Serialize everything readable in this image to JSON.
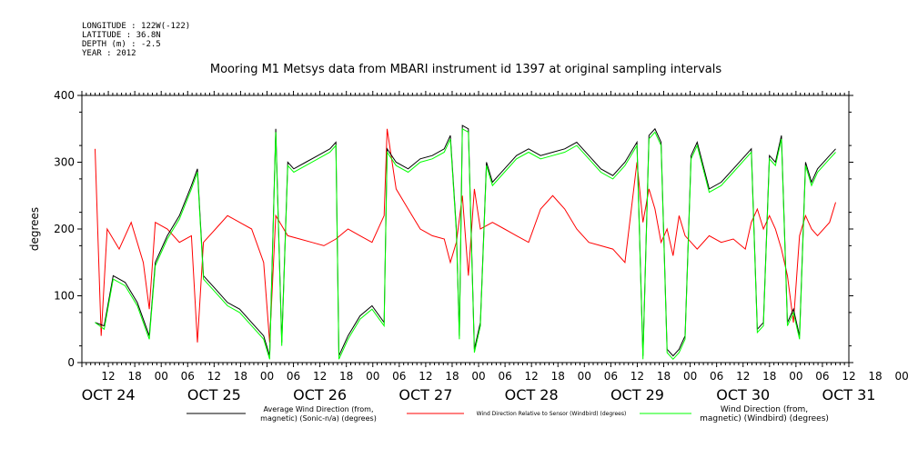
{
  "header": {
    "lines": [
      "LONGITUDE : 122W(-122)",
      "LATITUDE : 36.8N",
      "DEPTH (m) : -2.5",
      "YEAR : 2012"
    ],
    "title": "Mooring M1 Metsys data from MBARI instrument id 1397 at original sampling intervals"
  },
  "chart_data": {
    "type": "line",
    "title": "Mooring M1 Metsys data from MBARI instrument id 1397 at original sampling intervals",
    "xlabel": "",
    "ylabel": "degrees",
    "xlim": [
      "2012-10-24 06:00",
      "2012-10-31 12:00"
    ],
    "ylim": [
      0,
      400
    ],
    "y_ticks": [
      0,
      100,
      200,
      300,
      400
    ],
    "x_hour_labels": [
      "12",
      "18",
      "00",
      "06",
      "12",
      "18",
      "00",
      "06",
      "12",
      "18",
      "00",
      "06",
      "12",
      "18",
      "00",
      "06",
      "12",
      "18",
      "00",
      "06",
      "12",
      "18",
      "00",
      "06",
      "12",
      "18",
      "00",
      "06",
      "12",
      "18",
      "00",
      "06"
    ],
    "x_day_labels": [
      "OCT 24",
      "OCT 25",
      "OCT 26",
      "OCT 27",
      "OCT 28",
      "OCT 29",
      "OCT 30",
      "OCT 31"
    ],
    "grid": false,
    "legend": "bottom",
    "series": [
      {
        "name": "Average Wind Direction (from, magnetic) (Sonic-n/a) (degrees)",
        "name_lines": [
          "Average Wind Direction (from,",
          "magnetic) (Sonic-n/a) (degrees)"
        ],
        "color": "#000000",
        "points": [
          [
            0,
            60
          ],
          [
            3,
            55
          ],
          [
            6,
            130
          ],
          [
            10,
            120
          ],
          [
            14,
            90
          ],
          [
            18,
            40
          ],
          [
            20,
            150
          ],
          [
            24,
            190
          ],
          [
            28,
            220
          ],
          [
            32,
            265
          ],
          [
            34,
            290
          ],
          [
            36,
            130
          ],
          [
            40,
            110
          ],
          [
            44,
            90
          ],
          [
            48,
            80
          ],
          [
            52,
            60
          ],
          [
            56,
            40
          ],
          [
            58,
            10
          ],
          [
            60,
            350
          ],
          [
            62,
            30
          ],
          [
            64,
            300
          ],
          [
            66,
            290
          ],
          [
            70,
            300
          ],
          [
            74,
            310
          ],
          [
            78,
            320
          ],
          [
            80,
            330
          ],
          [
            81,
            10
          ],
          [
            84,
            40
          ],
          [
            88,
            70
          ],
          [
            92,
            85
          ],
          [
            96,
            60
          ],
          [
            97,
            320
          ],
          [
            100,
            300
          ],
          [
            104,
            290
          ],
          [
            108,
            305
          ],
          [
            112,
            310
          ],
          [
            116,
            320
          ],
          [
            118,
            340
          ],
          [
            120,
            200
          ],
          [
            121,
            40
          ],
          [
            122,
            355
          ],
          [
            124,
            350
          ],
          [
            126,
            20
          ],
          [
            128,
            60
          ],
          [
            130,
            300
          ],
          [
            132,
            270
          ],
          [
            136,
            290
          ],
          [
            140,
            310
          ],
          [
            144,
            320
          ],
          [
            148,
            310
          ],
          [
            152,
            315
          ],
          [
            156,
            320
          ],
          [
            160,
            330
          ],
          [
            164,
            310
          ],
          [
            168,
            290
          ],
          [
            172,
            280
          ],
          [
            176,
            300
          ],
          [
            180,
            330
          ],
          [
            182,
            10
          ],
          [
            184,
            340
          ],
          [
            186,
            350
          ],
          [
            188,
            330
          ],
          [
            190,
            20
          ],
          [
            192,
            10
          ],
          [
            194,
            20
          ],
          [
            196,
            40
          ],
          [
            198,
            310
          ],
          [
            200,
            330
          ],
          [
            204,
            260
          ],
          [
            208,
            270
          ],
          [
            212,
            290
          ],
          [
            216,
            310
          ],
          [
            218,
            320
          ],
          [
            220,
            50
          ],
          [
            222,
            60
          ],
          [
            224,
            310
          ],
          [
            226,
            300
          ],
          [
            228,
            340
          ],
          [
            230,
            60
          ],
          [
            232,
            80
          ],
          [
            234,
            40
          ],
          [
            236,
            300
          ],
          [
            238,
            270
          ],
          [
            240,
            290
          ],
          [
            244,
            310
          ],
          [
            246,
            320
          ]
        ]
      },
      {
        "name": "Wind Direction Relative to Sensor (Windbird) (degrees)",
        "name_lines": [
          "Wind Direction Relative to Sensor (Windbird) (degrees)"
        ],
        "color": "#ff0000",
        "points": [
          [
            0,
            320
          ],
          [
            2,
            40
          ],
          [
            4,
            200
          ],
          [
            8,
            170
          ],
          [
            12,
            210
          ],
          [
            16,
            150
          ],
          [
            18,
            80
          ],
          [
            20,
            210
          ],
          [
            24,
            200
          ],
          [
            28,
            180
          ],
          [
            32,
            190
          ],
          [
            34,
            30
          ],
          [
            36,
            180
          ],
          [
            40,
            200
          ],
          [
            44,
            220
          ],
          [
            48,
            210
          ],
          [
            52,
            200
          ],
          [
            56,
            150
          ],
          [
            58,
            30
          ],
          [
            60,
            220
          ],
          [
            64,
            190
          ],
          [
            68,
            185
          ],
          [
            72,
            180
          ],
          [
            76,
            175
          ],
          [
            80,
            185
          ],
          [
            84,
            200
          ],
          [
            88,
            190
          ],
          [
            92,
            180
          ],
          [
            96,
            220
          ],
          [
            97,
            350
          ],
          [
            100,
            260
          ],
          [
            104,
            230
          ],
          [
            108,
            200
          ],
          [
            112,
            190
          ],
          [
            116,
            185
          ],
          [
            118,
            150
          ],
          [
            120,
            180
          ],
          [
            122,
            250
          ],
          [
            124,
            130
          ],
          [
            126,
            260
          ],
          [
            128,
            200
          ],
          [
            132,
            210
          ],
          [
            136,
            200
          ],
          [
            140,
            190
          ],
          [
            144,
            180
          ],
          [
            148,
            230
          ],
          [
            152,
            250
          ],
          [
            156,
            230
          ],
          [
            160,
            200
          ],
          [
            164,
            180
          ],
          [
            168,
            175
          ],
          [
            172,
            170
          ],
          [
            176,
            150
          ],
          [
            180,
            300
          ],
          [
            182,
            210
          ],
          [
            184,
            260
          ],
          [
            186,
            230
          ],
          [
            188,
            180
          ],
          [
            190,
            200
          ],
          [
            192,
            160
          ],
          [
            194,
            220
          ],
          [
            196,
            190
          ],
          [
            198,
            180
          ],
          [
            200,
            170
          ],
          [
            204,
            190
          ],
          [
            208,
            180
          ],
          [
            212,
            185
          ],
          [
            216,
            170
          ],
          [
            218,
            210
          ],
          [
            220,
            230
          ],
          [
            222,
            200
          ],
          [
            224,
            220
          ],
          [
            226,
            200
          ],
          [
            228,
            170
          ],
          [
            230,
            130
          ],
          [
            232,
            60
          ],
          [
            234,
            190
          ],
          [
            236,
            220
          ],
          [
            238,
            200
          ],
          [
            240,
            190
          ],
          [
            244,
            210
          ],
          [
            246,
            240
          ]
        ]
      },
      {
        "name": "Wind Direction (from, magnetic) (Windbird) (degrees)",
        "name_lines": [
          "Wind Direction (from,",
          "magnetic) (Windbird) (degrees)"
        ],
        "color": "#00ff00",
        "points": [
          [
            0,
            60
          ],
          [
            3,
            50
          ],
          [
            6,
            125
          ],
          [
            10,
            115
          ],
          [
            14,
            85
          ],
          [
            18,
            35
          ],
          [
            20,
            145
          ],
          [
            24,
            185
          ],
          [
            28,
            215
          ],
          [
            32,
            260
          ],
          [
            34,
            285
          ],
          [
            36,
            125
          ],
          [
            40,
            105
          ],
          [
            44,
            85
          ],
          [
            48,
            75
          ],
          [
            52,
            55
          ],
          [
            56,
            35
          ],
          [
            58,
            5
          ],
          [
            60,
            345
          ],
          [
            62,
            25
          ],
          [
            64,
            295
          ],
          [
            66,
            285
          ],
          [
            70,
            295
          ],
          [
            74,
            305
          ],
          [
            78,
            315
          ],
          [
            80,
            325
          ],
          [
            81,
            5
          ],
          [
            84,
            35
          ],
          [
            88,
            65
          ],
          [
            92,
            80
          ],
          [
            96,
            55
          ],
          [
            97,
            315
          ],
          [
            100,
            295
          ],
          [
            104,
            285
          ],
          [
            108,
            300
          ],
          [
            112,
            305
          ],
          [
            116,
            315
          ],
          [
            118,
            335
          ],
          [
            120,
            195
          ],
          [
            121,
            35
          ],
          [
            122,
            350
          ],
          [
            124,
            345
          ],
          [
            126,
            15
          ],
          [
            128,
            55
          ],
          [
            130,
            295
          ],
          [
            132,
            265
          ],
          [
            136,
            285
          ],
          [
            140,
            305
          ],
          [
            144,
            315
          ],
          [
            148,
            305
          ],
          [
            152,
            310
          ],
          [
            156,
            315
          ],
          [
            160,
            325
          ],
          [
            164,
            305
          ],
          [
            168,
            285
          ],
          [
            172,
            275
          ],
          [
            176,
            295
          ],
          [
            180,
            325
          ],
          [
            182,
            5
          ],
          [
            184,
            335
          ],
          [
            186,
            345
          ],
          [
            188,
            325
          ],
          [
            190,
            15
          ],
          [
            192,
            5
          ],
          [
            194,
            15
          ],
          [
            196,
            35
          ],
          [
            198,
            305
          ],
          [
            200,
            325
          ],
          [
            204,
            255
          ],
          [
            208,
            265
          ],
          [
            212,
            285
          ],
          [
            216,
            305
          ],
          [
            218,
            315
          ],
          [
            220,
            45
          ],
          [
            222,
            55
          ],
          [
            224,
            305
          ],
          [
            226,
            295
          ],
          [
            228,
            335
          ],
          [
            230,
            55
          ],
          [
            232,
            75
          ],
          [
            234,
            35
          ],
          [
            236,
            295
          ],
          [
            238,
            265
          ],
          [
            240,
            285
          ],
          [
            244,
            305
          ],
          [
            246,
            315
          ]
        ]
      }
    ]
  }
}
